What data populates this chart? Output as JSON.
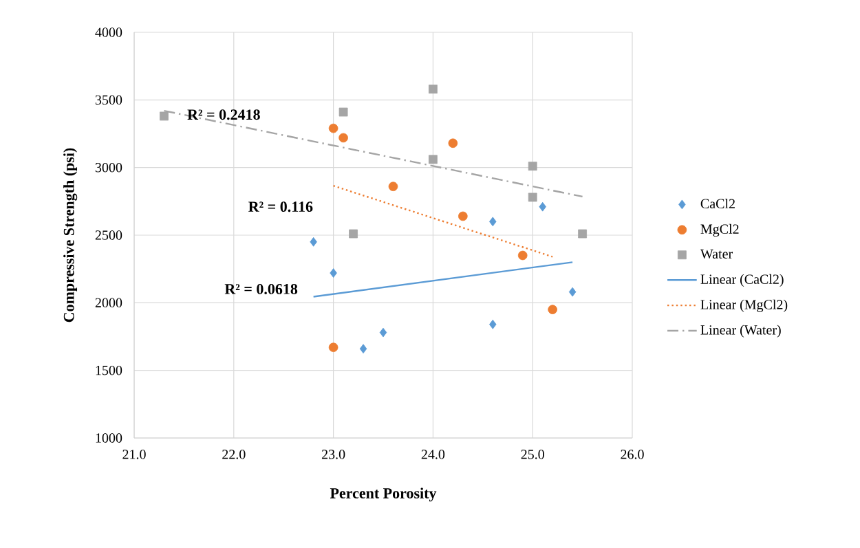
{
  "chart_data": {
    "type": "scatter",
    "xlabel": "Percent Porosity",
    "ylabel": "Compressive Strength (psi)",
    "xlim": [
      21,
      26
    ],
    "xticks": [
      {
        "value": 21,
        "label": "21.0"
      },
      {
        "value": 22,
        "label": "22.0"
      },
      {
        "value": 23,
        "label": "23.0"
      },
      {
        "value": 24,
        "label": "24.0"
      },
      {
        "value": 25,
        "label": "25.0"
      },
      {
        "value": 26,
        "label": "26.0"
      }
    ],
    "ylim": [
      1000,
      4000
    ],
    "yticks": [
      1000,
      1500,
      2000,
      2500,
      3000,
      3500,
      4000
    ],
    "grid": true,
    "legend": "right",
    "series": [
      {
        "name": "CaCl2",
        "marker": "diamond",
        "color": "#5b9bd5",
        "x": [
          22.8,
          23.0,
          23.3,
          23.5,
          24.6,
          24.6,
          25.1,
          25.4
        ],
        "values": [
          2450,
          2220,
          1660,
          1780,
          2600,
          1840,
          2710,
          2080
        ]
      },
      {
        "name": "MgCl2",
        "marker": "circle",
        "color": "#ed7d31",
        "x": [
          23.0,
          23.1,
          23.6,
          24.2,
          24.3,
          24.9,
          25.2,
          23.0
        ],
        "values": [
          3290,
          3220,
          2860,
          3180,
          2640,
          2350,
          1950,
          1670
        ]
      },
      {
        "name": "Water",
        "marker": "square",
        "color": "#a5a5a5",
        "x": [
          21.3,
          23.1,
          23.2,
          24.0,
          24.0,
          25.0,
          25.0,
          25.5
        ],
        "values": [
          3380,
          3410,
          2510,
          3580,
          3060,
          3010,
          2780,
          2510
        ]
      },
      {
        "name": "Linear (CaCl2)",
        "type": "line",
        "line_style": "solid",
        "color": "#5b9bd5",
        "x": [
          22.8,
          25.4
        ],
        "values": [
          2045,
          2300
        ]
      },
      {
        "name": "Linear (MgCl2)",
        "type": "line",
        "line_style": "dotted",
        "color": "#ed7d31",
        "x": [
          23.0,
          25.2
        ],
        "values": [
          2865,
          2340
        ]
      },
      {
        "name": "Linear (Water)",
        "type": "line",
        "line_style": "dashdot",
        "color": "#a5a5a5",
        "x": [
          21.3,
          25.5
        ],
        "values": [
          3420,
          2785
        ]
      }
    ],
    "annotations": [
      "R² = 0.2418",
      "R² = 0.116",
      "R² = 0.0618"
    ]
  }
}
